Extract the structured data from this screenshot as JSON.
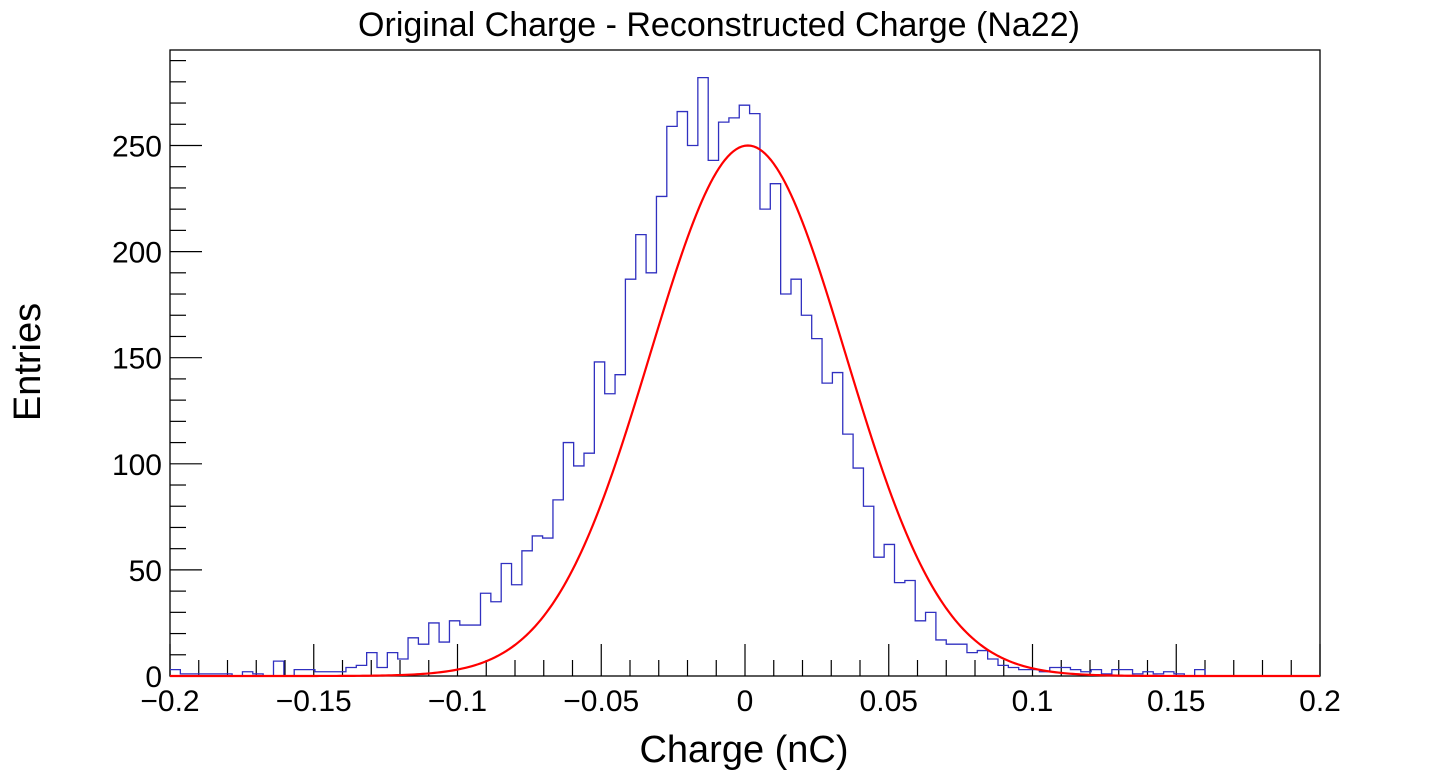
{
  "chart_data": {
    "type": "bar",
    "title": "Original Charge - Reconstructed Charge (Na22)",
    "xlabel": "Charge (nC)",
    "ylabel": "Entries",
    "xlim": [
      -0.2,
      0.2
    ],
    "ylim": [
      0,
      295
    ],
    "grid": false,
    "x_tick_labels": [
      "−0.2",
      "−0.15",
      "−0.1",
      "−0.05",
      "0",
      "0.05",
      "0.1",
      "0.15",
      "0.2"
    ],
    "y_tick_labels": [
      "0",
      "50",
      "100",
      "150",
      "200",
      "250"
    ],
    "series": [
      {
        "style": "step-histogram",
        "color": "#3030c0",
        "bin_edges_start": -0.2,
        "bin_width": 0.0036,
        "values": [
          3,
          1,
          1,
          1,
          1,
          1,
          0,
          2,
          1,
          0,
          7,
          0,
          3,
          3,
          2,
          2,
          2,
          4,
          5,
          11,
          4,
          11,
          8,
          18,
          15,
          25,
          16,
          26,
          24,
          24,
          39,
          35,
          53,
          43,
          59,
          66,
          65,
          83,
          110,
          99,
          105,
          148,
          133,
          142,
          187,
          208,
          190,
          226,
          259,
          266,
          250,
          282,
          243,
          261,
          263,
          269,
          265,
          220,
          232,
          180,
          187,
          170,
          159,
          138,
          143,
          114,
          98,
          80,
          56,
          62,
          44,
          45,
          26,
          30,
          17,
          15,
          15,
          11,
          12,
          8,
          5,
          4,
          3,
          3,
          2,
          4,
          4,
          3,
          2,
          3,
          1,
          3,
          3,
          1,
          2,
          1,
          2,
          1,
          0,
          3,
          0
        ]
      },
      {
        "style": "gaussian-fit",
        "color": "#ff0000",
        "amplitude": 250,
        "mean": 0.001,
        "sigma": 0.034
      }
    ]
  }
}
